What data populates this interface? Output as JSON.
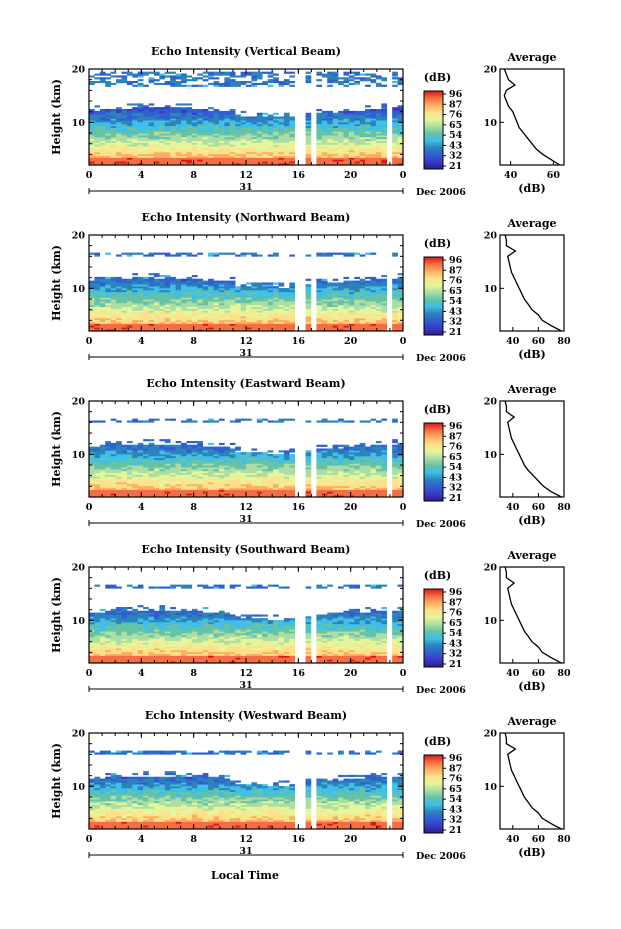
{
  "figure": {
    "xlabel": "Local Time",
    "date_label": "Dec 2006",
    "day_label": "31",
    "units_label": "(dB)",
    "avg_title": "Average",
    "avg_xlabel": "(dB)"
  },
  "colorbar": {
    "ticks": [
      "96",
      "87",
      "76",
      "65",
      "54",
      "43",
      "32",
      "21"
    ],
    "colors": [
      "#d7191c",
      "#f46d43",
      "#fdae61",
      "#fee08b",
      "#e6f598",
      "#abdda4",
      "#66c2a5",
      "#3fbfe8",
      "#2b83ba",
      "#2f5fd0",
      "#3a3ac8",
      "#2b1f8f"
    ]
  },
  "chart_data": [
    {
      "type": "heatmap",
      "title": "Echo Intensity (Vertical Beam)",
      "ylabel": "Height (km)",
      "xlim": [
        0,
        24
      ],
      "ylim": [
        2,
        20
      ],
      "xticks": [
        "0",
        "4",
        "8",
        "12",
        "16",
        "20",
        "0"
      ],
      "yticks": [
        "10",
        "20"
      ],
      "zlim": [
        21,
        96
      ],
      "profile": {
        "title": "Average",
        "xlabel": "(dB)",
        "xlim": [
          35,
          65
        ],
        "xticks": [
          "40",
          "60"
        ],
        "yticks": [
          "10",
          "20"
        ],
        "heights": [
          2,
          3,
          4,
          5,
          6,
          7,
          8,
          9,
          10,
          11,
          12,
          13,
          14,
          15,
          16,
          17,
          18,
          19,
          20
        ],
        "values": [
          63,
          59,
          55,
          52,
          50,
          48,
          46,
          44,
          43,
          42,
          41,
          39,
          38,
          37,
          38,
          42,
          39,
          38,
          37
        ]
      }
    },
    {
      "type": "heatmap",
      "title": "Echo Intensity (Northward Beam)",
      "ylabel": "Height (km)",
      "xlim": [
        0,
        24
      ],
      "ylim": [
        2,
        20
      ],
      "xticks": [
        "0",
        "4",
        "8",
        "12",
        "16",
        "20",
        "0"
      ],
      "yticks": [
        "10",
        "20"
      ],
      "zlim": [
        21,
        96
      ],
      "profile": {
        "title": "Average",
        "xlabel": "(dB)",
        "xlim": [
          30,
          80
        ],
        "xticks": [
          "40",
          "60",
          "80"
        ],
        "yticks": [
          "10",
          "20"
        ],
        "heights": [
          2,
          3,
          4,
          5,
          6,
          7,
          8,
          9,
          10,
          11,
          12,
          13,
          14,
          15,
          16,
          17,
          18,
          19,
          20
        ],
        "values": [
          78,
          70,
          63,
          60,
          55,
          52,
          49,
          47,
          45,
          43,
          41,
          39,
          38,
          37,
          36,
          42,
          35,
          35,
          34
        ]
      }
    },
    {
      "type": "heatmap",
      "title": "Echo Intensity (Eastward Beam)",
      "ylabel": "Height (km)",
      "xlim": [
        0,
        24
      ],
      "ylim": [
        2,
        20
      ],
      "xticks": [
        "0",
        "4",
        "8",
        "12",
        "16",
        "20",
        "0"
      ],
      "yticks": [
        "10",
        "20"
      ],
      "zlim": [
        21,
        96
      ],
      "profile": {
        "title": "Average",
        "xlabel": "(dB)",
        "xlim": [
          30,
          80
        ],
        "xticks": [
          "40",
          "60",
          "80"
        ],
        "yticks": [
          "10",
          "20"
        ],
        "heights": [
          2,
          3,
          4,
          5,
          6,
          7,
          8,
          9,
          10,
          11,
          12,
          13,
          14,
          15,
          16,
          17,
          18,
          19,
          20
        ],
        "values": [
          78,
          70,
          64,
          60,
          56,
          52,
          49,
          47,
          45,
          43,
          41,
          39,
          38,
          37,
          36,
          41,
          35,
          35,
          34
        ]
      }
    },
    {
      "type": "heatmap",
      "title": "Echo Intensity (Southward Beam)",
      "ylabel": "Height (km)",
      "xlim": [
        0,
        24
      ],
      "ylim": [
        2,
        20
      ],
      "xticks": [
        "0",
        "4",
        "8",
        "12",
        "16",
        "20",
        "0"
      ],
      "yticks": [
        "10",
        "20"
      ],
      "zlim": [
        21,
        96
      ],
      "profile": {
        "title": "Average",
        "xlabel": "(dB)",
        "xlim": [
          30,
          80
        ],
        "xticks": [
          "40",
          "60",
          "80"
        ],
        "yticks": [
          "10",
          "20"
        ],
        "heights": [
          2,
          3,
          4,
          5,
          6,
          7,
          8,
          9,
          10,
          11,
          12,
          13,
          14,
          15,
          16,
          17,
          18,
          19,
          20
        ],
        "values": [
          78,
          70,
          63,
          60,
          55,
          52,
          49,
          47,
          45,
          43,
          41,
          39,
          38,
          37,
          36,
          41,
          35,
          35,
          34
        ]
      }
    },
    {
      "type": "heatmap",
      "title": "Echo Intensity (Westward Beam)",
      "ylabel": "Height (km)",
      "xlim": [
        0,
        24
      ],
      "ylim": [
        2,
        20
      ],
      "xticks": [
        "0",
        "4",
        "8",
        "12",
        "16",
        "20",
        "0"
      ],
      "yticks": [
        "10",
        "20"
      ],
      "zlim": [
        21,
        96
      ],
      "profile": {
        "title": "Average",
        "xlabel": "(dB)",
        "xlim": [
          30,
          80
        ],
        "xticks": [
          "40",
          "60",
          "80"
        ],
        "yticks": [
          "10",
          "20"
        ],
        "heights": [
          2,
          3,
          4,
          5,
          6,
          7,
          8,
          9,
          10,
          11,
          12,
          13,
          14,
          15,
          16,
          17,
          18,
          19,
          20
        ],
        "values": [
          78,
          70,
          63,
          60,
          55,
          52,
          49,
          47,
          45,
          43,
          41,
          39,
          38,
          37,
          36,
          42,
          35,
          35,
          34
        ]
      }
    }
  ]
}
